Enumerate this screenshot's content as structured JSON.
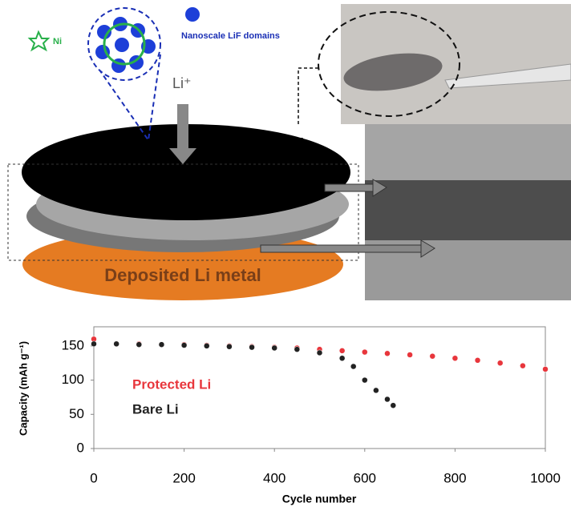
{
  "diagram": {
    "ni_label": "Ni",
    "lif_label": "Nanoscale LiF domains",
    "li_ion": "Li⁺",
    "disk_label": "Deposited Li metal"
  },
  "chart_data": {
    "type": "scatter",
    "xlabel": "Cycle number",
    "ylabel": "Capacity (mAh g⁻¹)",
    "xlim": [
      0,
      1000
    ],
    "xticks": [
      0,
      200,
      400,
      600,
      800,
      1000
    ],
    "ylim": [
      0,
      178
    ],
    "yticks": [
      0,
      50,
      100,
      150
    ],
    "series": [
      {
        "name": "Protected Li",
        "color": "#e8363c",
        "x": [
          0,
          50,
          100,
          150,
          200,
          250,
          300,
          350,
          400,
          450,
          500,
          550,
          600,
          650,
          700,
          750,
          800,
          850,
          900,
          950,
          1000
        ],
        "values": [
          160,
          153,
          153,
          152,
          152,
          151,
          150,
          149,
          148,
          147,
          145,
          143,
          141,
          139,
          137,
          135,
          132,
          129,
          125,
          121,
          116
        ]
      },
      {
        "name": "Bare Li",
        "color": "#222222",
        "x": [
          0,
          50,
          100,
          150,
          200,
          250,
          300,
          350,
          400,
          450,
          500,
          550,
          575,
          600,
          625,
          650,
          663
        ],
        "values": [
          153,
          153,
          152,
          152,
          151,
          150,
          149,
          148,
          147,
          145,
          140,
          132,
          120,
          100,
          85,
          72,
          63
        ]
      }
    ]
  }
}
